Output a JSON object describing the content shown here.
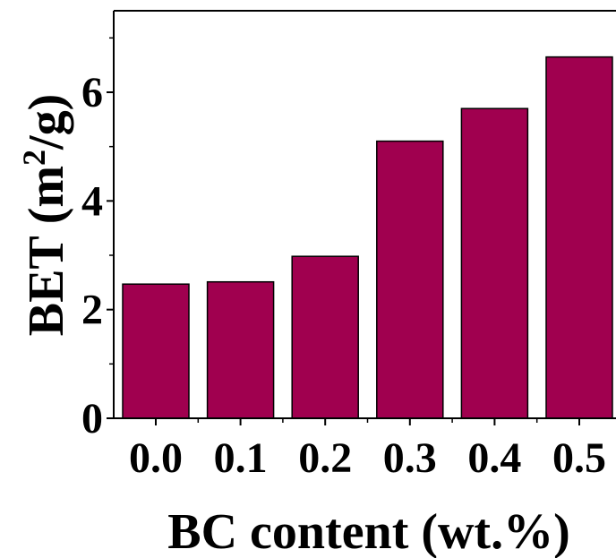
{
  "chart_data": {
    "type": "bar",
    "categories": [
      "0.0",
      "0.1",
      "0.2",
      "0.3",
      "0.4",
      "0.5"
    ],
    "values": [
      2.47,
      2.51,
      2.98,
      5.1,
      5.7,
      6.65
    ],
    "xlabel": "BC content (wt.%)",
    "ylabel": {
      "prefix": "BET (m",
      "superscript": "2",
      "suffix": "/g)"
    },
    "ylim": [
      0,
      7.5
    ],
    "yticks": [
      "0",
      "2",
      "4",
      "6"
    ],
    "grid": false,
    "legend": "none",
    "bar_color": "#a0004f"
  }
}
